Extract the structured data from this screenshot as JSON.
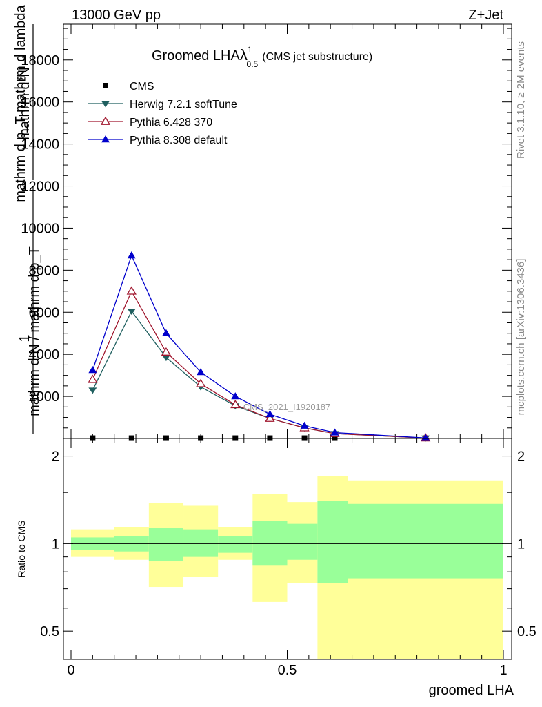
{
  "header": {
    "left": "13000 GeV pp",
    "right": "Z+Jet"
  },
  "side_labels": {
    "rivet": "Rivet 3.1.10, ≥ 2M events",
    "mcplots": "mcplots.cern.ch [arXiv:1306.3436]"
  },
  "watermark": "CMS_2021_I1920187",
  "chart_data": [
    {
      "type": "scatter",
      "title": "Groomed LHA",
      "title_symbol": "λ",
      "title_sup": "1",
      "title_sub": "0.5",
      "title_suffix": "(CMS jet substructure)",
      "ylabel_top": "mathrm d²N",
      "ylabel_top_den": "mathrm d p_T mathrm d lambda",
      "ylabel_bottom": "1",
      "ylabel_bottom_den": "mathrm d N / mathrm d p_T",
      "xlim": [
        -0.02,
        1.0
      ],
      "ylim": [
        0,
        19700
      ],
      "yticks": [
        2000,
        4000,
        6000,
        8000,
        10000,
        12000,
        14000,
        16000,
        18000
      ],
      "ytick_labels": [
        "2000",
        "4000",
        "6000",
        "8000",
        "10000",
        "12000",
        "14000",
        "16000",
        "18000"
      ],
      "legend_position": "top-left",
      "series": [
        {
          "name": "CMS",
          "marker": "square",
          "color": "#000000",
          "x": [
            0.05,
            0.14,
            0.22,
            0.3,
            0.38,
            0.46,
            0.54,
            0.61,
            0.82
          ],
          "y": [
            15,
            15,
            15,
            15,
            15,
            15,
            15,
            15,
            15
          ]
        },
        {
          "name": "Herwig 7.2.1 softTune",
          "marker": "triangle-down",
          "color": "#1f5f5f",
          "x": [
            0.05,
            0.14,
            0.22,
            0.3,
            0.38,
            0.46,
            0.54,
            0.61,
            0.82
          ],
          "y": [
            2300,
            6050,
            3850,
            2450,
            1550,
            950,
            500,
            230,
            20
          ]
        },
        {
          "name": "Pythia 6.428 370",
          "marker": "triangle-up-open",
          "color": "#a0162d",
          "x": [
            0.05,
            0.14,
            0.22,
            0.3,
            0.38,
            0.46,
            0.54,
            0.61,
            0.82
          ],
          "y": [
            2800,
            7000,
            4100,
            2600,
            1600,
            950,
            500,
            230,
            20
          ]
        },
        {
          "name": "Pythia 8.308 default",
          "marker": "triangle-up",
          "color": "#0000cc",
          "x": [
            0.05,
            0.14,
            0.22,
            0.3,
            0.38,
            0.46,
            0.54,
            0.61,
            0.82
          ],
          "y": [
            3250,
            8700,
            5000,
            3150,
            2000,
            1150,
            600,
            280,
            25
          ]
        }
      ]
    },
    {
      "type": "area",
      "ylabel": "Ratio to CMS",
      "xlabel": "groomed LHA",
      "xlim": [
        -0.02,
        1.0
      ],
      "ylim": [
        0.35,
        2.25
      ],
      "yticks": [
        0.5,
        1,
        2
      ],
      "ytick_labels": [
        "0.5",
        "1",
        "2"
      ],
      "xticks": [
        0,
        0.5,
        1
      ],
      "xtick_labels": [
        "0",
        "0.5",
        "1"
      ],
      "reference_line": 1,
      "bins": [
        {
          "x0": 0.0,
          "x1": 0.1,
          "inner": [
            0.95,
            1.05
          ],
          "outer": [
            0.9,
            1.12
          ]
        },
        {
          "x0": 0.1,
          "x1": 0.18,
          "inner": [
            0.94,
            1.06
          ],
          "outer": [
            0.88,
            1.14
          ]
        },
        {
          "x0": 0.18,
          "x1": 0.26,
          "inner": [
            0.87,
            1.13
          ],
          "outer": [
            0.71,
            1.38
          ]
        },
        {
          "x0": 0.26,
          "x1": 0.34,
          "inner": [
            0.9,
            1.12
          ],
          "outer": [
            0.77,
            1.35
          ]
        },
        {
          "x0": 0.34,
          "x1": 0.42,
          "inner": [
            0.93,
            1.06
          ],
          "outer": [
            0.88,
            1.14
          ]
        },
        {
          "x0": 0.42,
          "x1": 0.5,
          "inner": [
            0.84,
            1.2
          ],
          "outer": [
            0.63,
            1.48
          ]
        },
        {
          "x0": 0.5,
          "x1": 0.57,
          "inner": [
            0.88,
            1.17
          ],
          "outer": [
            0.73,
            1.39
          ]
        },
        {
          "x0": 0.57,
          "x1": 0.64,
          "inner": [
            0.73,
            1.4
          ],
          "outer": [
            0.37,
            1.71
          ]
        },
        {
          "x0": 0.64,
          "x1": 1.0,
          "inner": [
            0.76,
            1.37
          ],
          "outer": [
            0.39,
            1.65
          ]
        }
      ],
      "colors": {
        "inner": "#99ff99",
        "outer": "#ffff99"
      }
    }
  ]
}
